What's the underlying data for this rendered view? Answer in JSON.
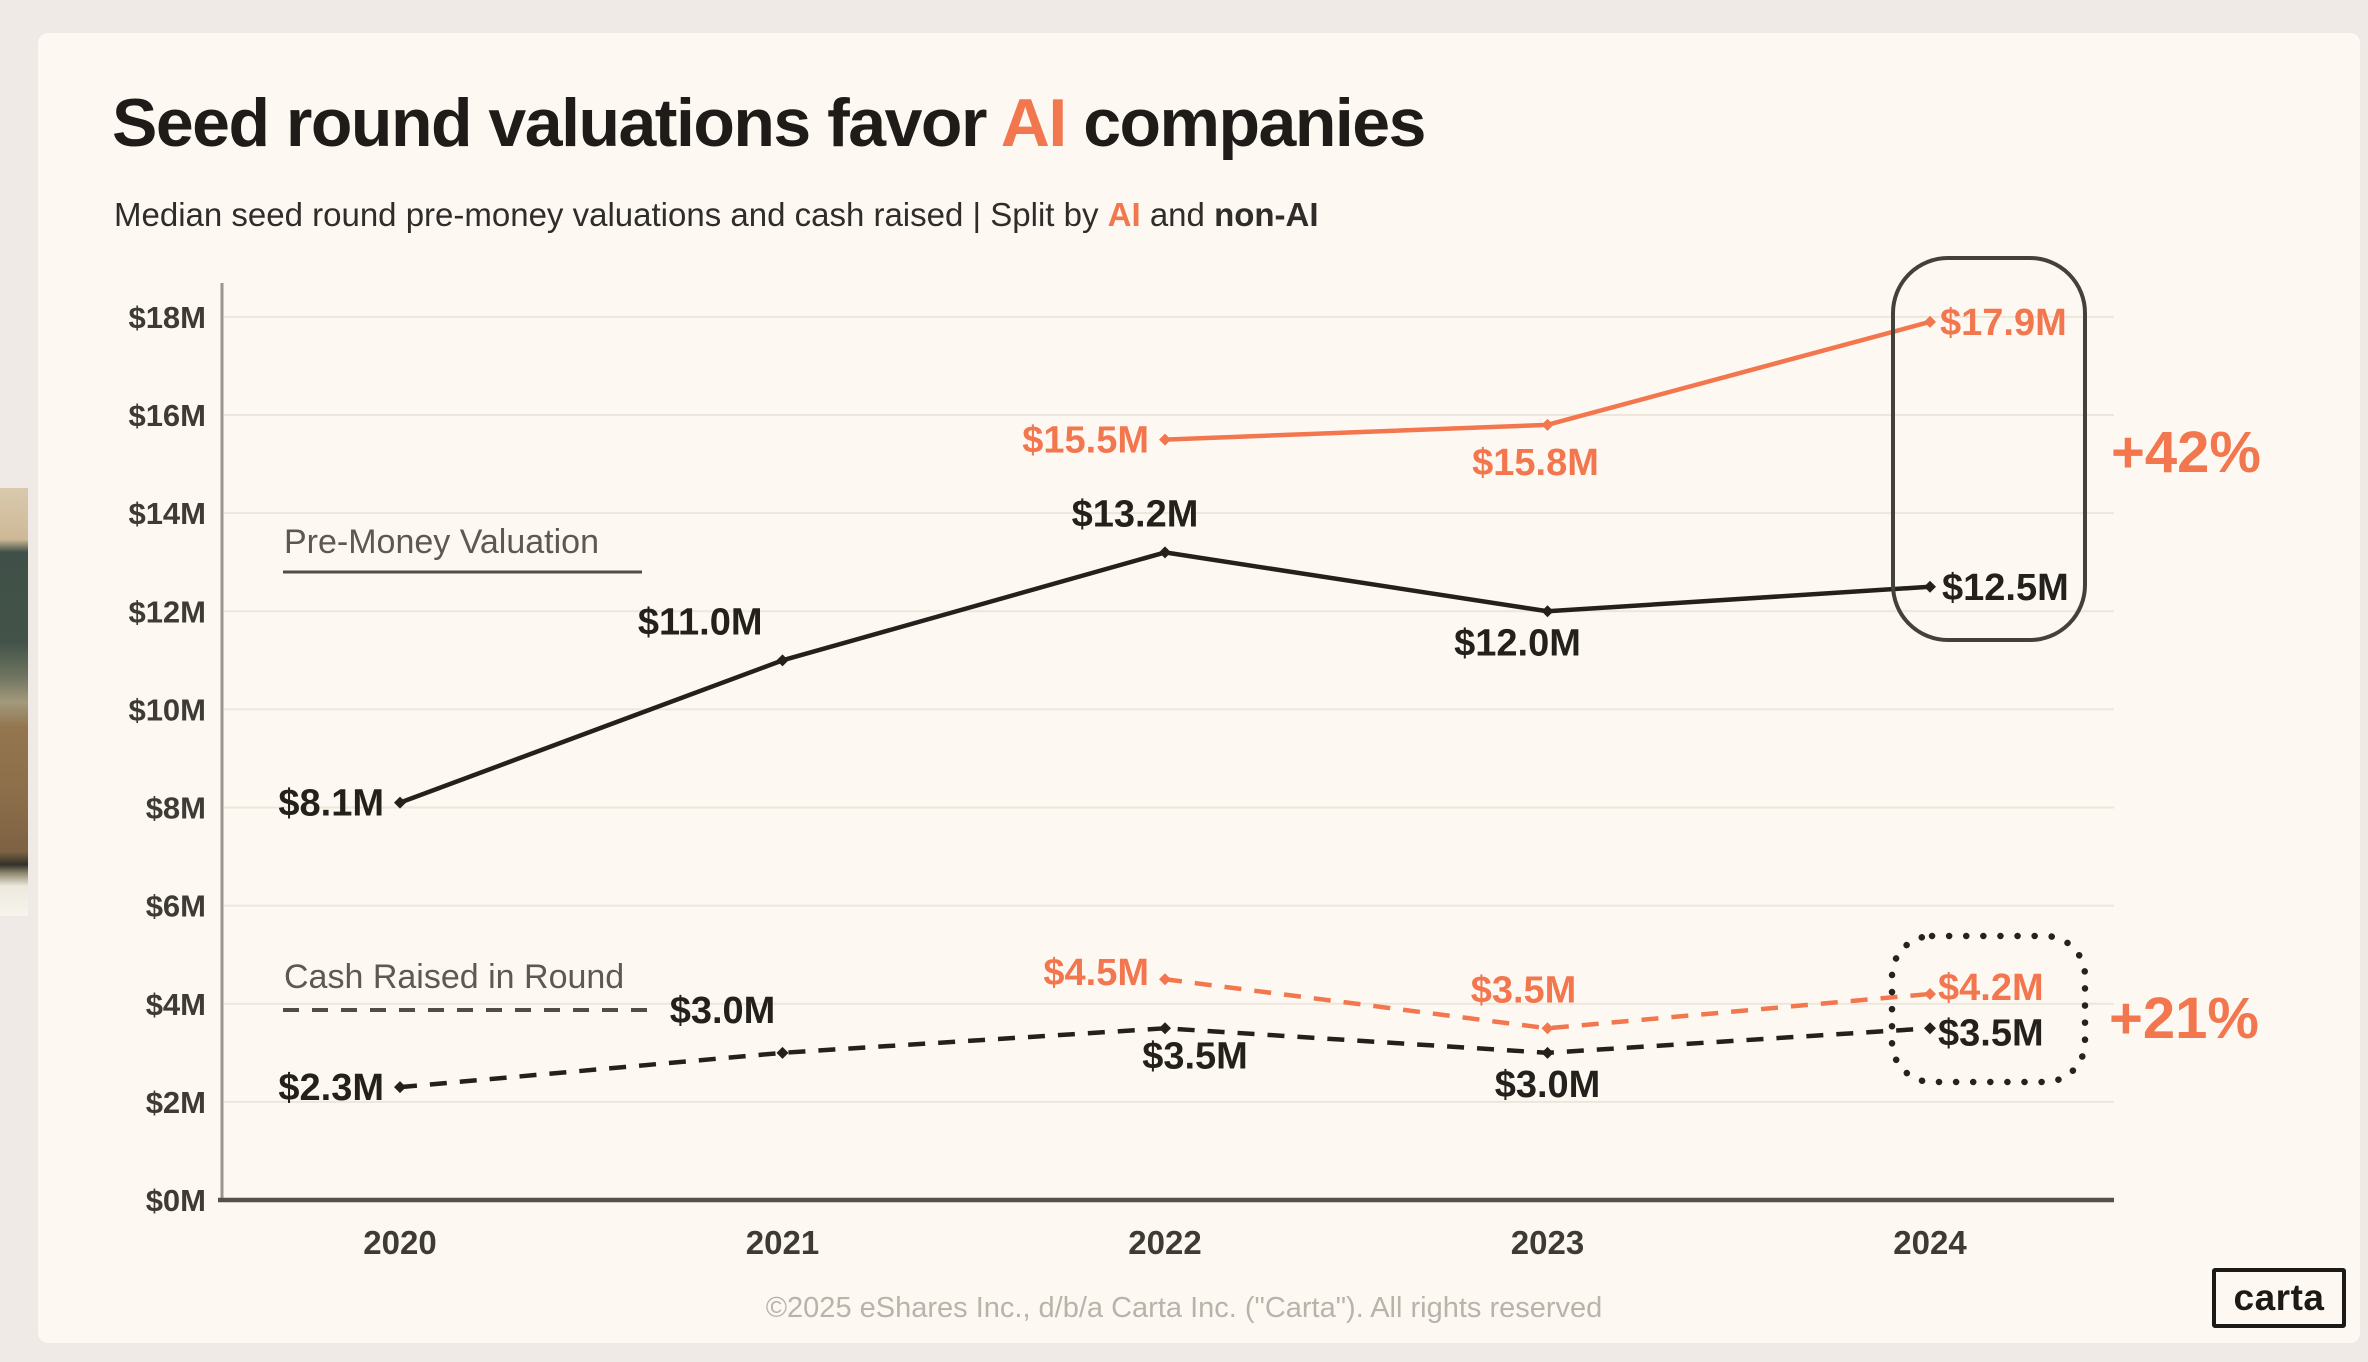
{
  "page": {
    "background_color": "#EFEAE6",
    "card_background_color": "#FDF9F2"
  },
  "header": {
    "title_prefix": "Seed round valuations favor ",
    "title_highlight": "AI",
    "title_suffix": " companies",
    "subtitle_prefix": "Median seed round pre-money valuations and cash raised | Split by ",
    "subtitle_highlight": "AI",
    "subtitle_middle": " and ",
    "subtitle_bold_end": "non-AI"
  },
  "footer": {
    "copyright": "©2025 eShares Inc., d/b/a Carta Inc. (\"Carta\"). All rights reserved",
    "logo_text": "carta"
  },
  "chart_data": {
    "type": "line",
    "x": [
      2020,
      2021,
      2022,
      2023,
      2024
    ],
    "x_axis": {
      "tick_labels": [
        "2020",
        "2021",
        "2022",
        "2023",
        "2024"
      ]
    },
    "y_axis": {
      "min": 0,
      "max": 18,
      "step": 2,
      "grid": true,
      "tick_labels": [
        "$0M",
        "$2M",
        "$4M",
        "$6M",
        "$8M",
        "$10M",
        "$12M",
        "$14M",
        "$16M",
        "$18M"
      ]
    },
    "colors": {
      "ai": "#F2764E",
      "non_ai": "#24211D"
    },
    "series": [
      {
        "id": "ai-valuation",
        "name": "AI — Pre-Money Valuation",
        "color": "#F2764E",
        "line_style": "solid",
        "points": [
          {
            "x": 2022,
            "y": 15.5,
            "label": "$15.5M"
          },
          {
            "x": 2023,
            "y": 15.8,
            "label": "$15.8M"
          },
          {
            "x": 2024,
            "y": 17.9,
            "label": "$17.9M"
          }
        ]
      },
      {
        "id": "non-ai-valuation",
        "name": "Non-AI — Pre-Money Valuation",
        "color": "#24211D",
        "line_style": "solid",
        "points": [
          {
            "x": 2020,
            "y": 8.1,
            "label": "$8.1M"
          },
          {
            "x": 2021,
            "y": 11.0,
            "label": "$11.0M"
          },
          {
            "x": 2022,
            "y": 13.2,
            "label": "$13.2M"
          },
          {
            "x": 2023,
            "y": 12.0,
            "label": "$12.0M"
          },
          {
            "x": 2024,
            "y": 12.5,
            "label": "$12.5M"
          }
        ]
      },
      {
        "id": "ai-cash",
        "name": "AI — Cash Raised in Round",
        "color": "#F2764E",
        "line_style": "dashed",
        "points": [
          {
            "x": 2022,
            "y": 4.5,
            "label": "$4.5M"
          },
          {
            "x": 2023,
            "y": 3.5,
            "label": "$3.5M"
          },
          {
            "x": 2024,
            "y": 4.2,
            "label": "$4.2M"
          }
        ]
      },
      {
        "id": "non-ai-cash",
        "name": "Non-AI — Cash Raised in Round",
        "color": "#24211D",
        "line_style": "dashed",
        "points": [
          {
            "x": 2020,
            "y": 2.3,
            "label": "$2.3M"
          },
          {
            "x": 2021,
            "y": 3.0,
            "label": "$3.0M"
          },
          {
            "x": 2022,
            "y": 3.5,
            "label": "$3.5M"
          },
          {
            "x": 2023,
            "y": 3.0,
            "label": "$3.0M"
          },
          {
            "x": 2024,
            "y": 3.5,
            "label": "$3.5M"
          }
        ]
      }
    ],
    "series_group_labels": [
      {
        "text": "Pre-Money Valuation",
        "line_style": "solid"
      },
      {
        "text": "Cash Raised in Round",
        "line_style": "dashed"
      }
    ],
    "annotations": [
      {
        "text": "+42%",
        "color": "#F2764E",
        "refers_to": "2024 pre-money valuation AI vs non-AI"
      },
      {
        "text": "+21%",
        "color": "#F2764E",
        "refers_to": "2024 cash raised AI vs non-AI"
      }
    ],
    "highlight_boxes": [
      {
        "style": "solid",
        "contains": [
          "$17.9M",
          "$12.5M"
        ]
      },
      {
        "style": "dotted",
        "contains": [
          "$4.2M",
          "$3.5M"
        ]
      }
    ]
  }
}
